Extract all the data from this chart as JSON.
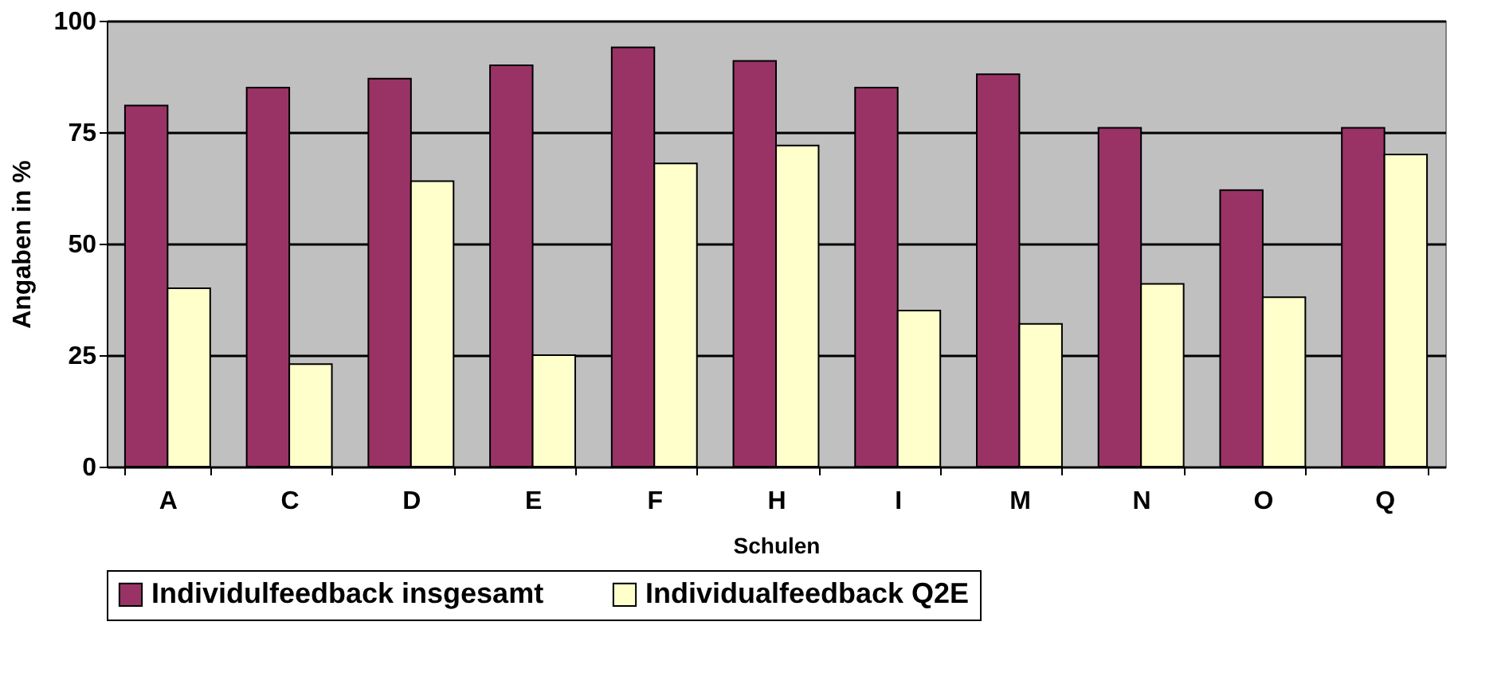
{
  "chart_data": {
    "type": "bar",
    "xlabel": "Schulen",
    "ylabel": "Angaben in %",
    "categories": [
      "A",
      "C",
      "D",
      "E",
      "F",
      "H",
      "I",
      "M",
      "N",
      "O",
      "Q"
    ],
    "series": [
      {
        "name": "Individulfeedback insgesamt",
        "color": "#993366",
        "values": [
          81,
          85,
          87,
          90,
          94,
          91,
          85,
          88,
          76,
          62,
          76
        ]
      },
      {
        "name": "Individualfeedback Q2E",
        "color": "#ffffcc",
        "values": [
          40,
          23,
          64,
          25,
          68,
          72,
          35,
          32,
          41,
          38,
          70
        ]
      }
    ],
    "ylim": [
      0,
      100
    ],
    "yticks": [
      0,
      25,
      50,
      75,
      100
    ],
    "grid": "y",
    "legend": "bottom"
  }
}
